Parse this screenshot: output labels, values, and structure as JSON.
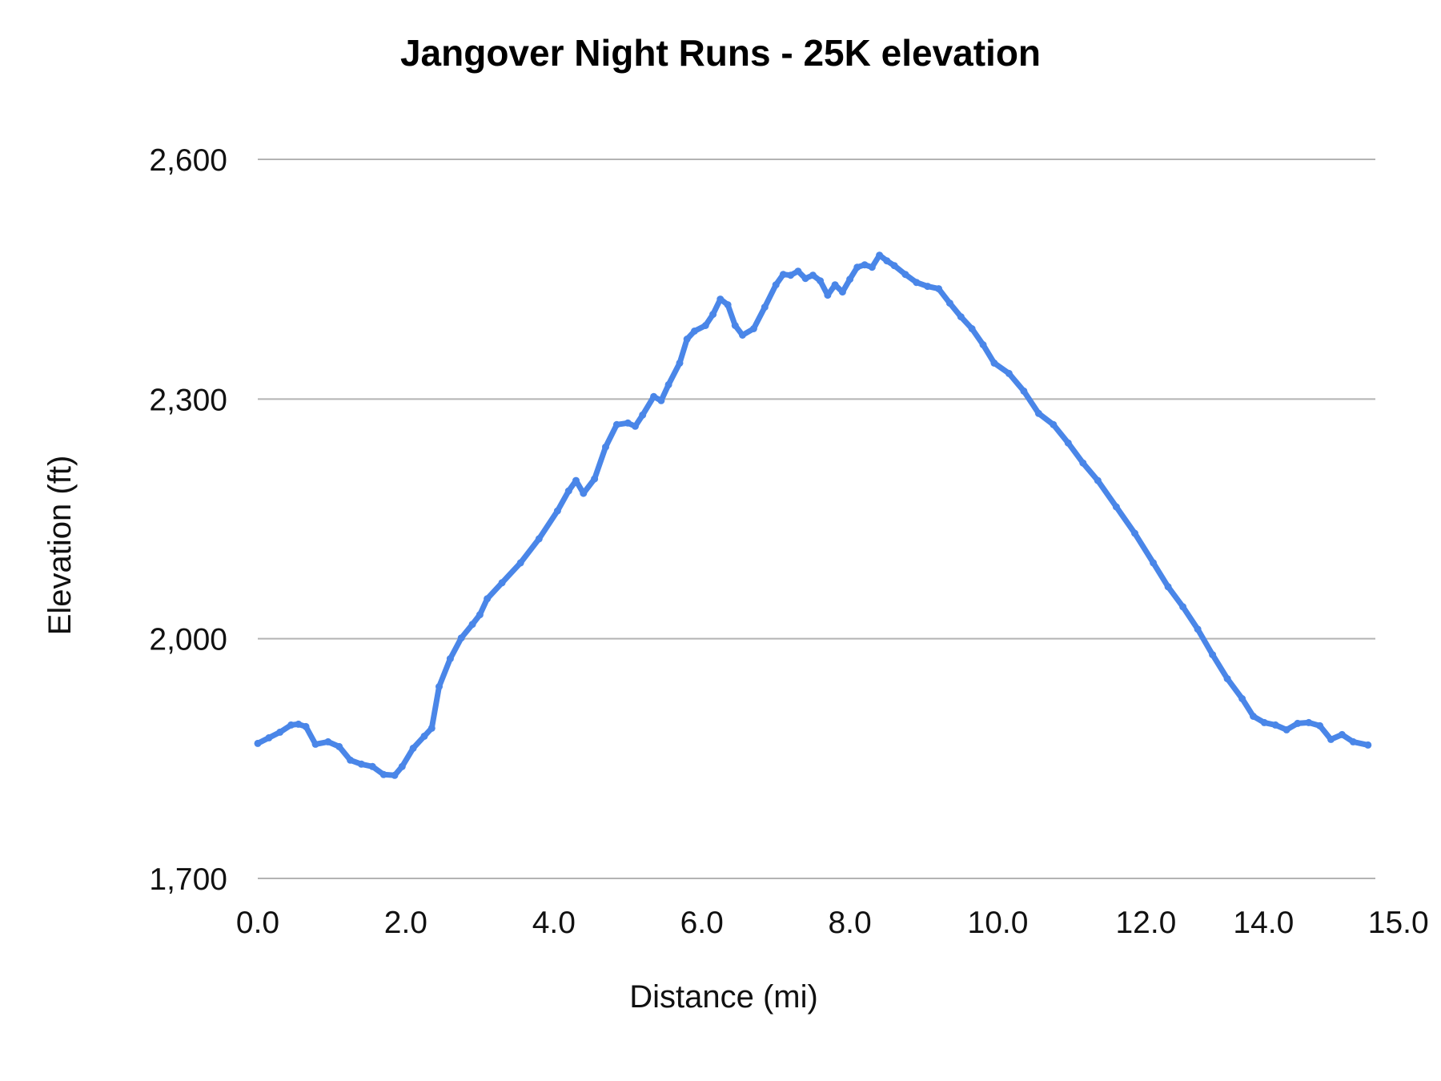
{
  "chart_data": {
    "type": "line",
    "title": "Jangover Night Runs - 25K elevation",
    "xlabel": "Distance (mi)",
    "ylabel": "Elevation (ft)",
    "xlim": [
      0,
      15.1
    ],
    "ylim": [
      1700,
      2600
    ],
    "x_ticks": [
      {
        "value": 0,
        "label": "0.0"
      },
      {
        "value": 2,
        "label": "2.0"
      },
      {
        "value": 4,
        "label": "4.0"
      },
      {
        "value": 6,
        "label": "6.0"
      },
      {
        "value": 8,
        "label": "8.0"
      },
      {
        "value": 10,
        "label": "10.0"
      },
      {
        "value": 12,
        "label": "12.0"
      },
      {
        "value": 14,
        "label": "14.0"
      },
      {
        "value": 15,
        "label": "15.0"
      }
    ],
    "y_ticks": [
      {
        "value": 1700,
        "label": "1,700"
      },
      {
        "value": 2000,
        "label": "2,000"
      },
      {
        "value": 2300,
        "label": "2,300"
      },
      {
        "value": 2600,
        "label": "2,600"
      }
    ],
    "grid": true,
    "legend": "none",
    "series": [
      {
        "color": "#4a86e8",
        "points": [
          [
            0.0,
            1869
          ],
          [
            0.15,
            1876
          ],
          [
            0.3,
            1883
          ],
          [
            0.45,
            1892
          ],
          [
            0.55,
            1893
          ],
          [
            0.65,
            1890
          ],
          [
            0.78,
            1868
          ],
          [
            0.95,
            1871
          ],
          [
            1.1,
            1865
          ],
          [
            1.25,
            1848
          ],
          [
            1.4,
            1843
          ],
          [
            1.55,
            1840
          ],
          [
            1.7,
            1830
          ],
          [
            1.85,
            1829
          ],
          [
            1.95,
            1840
          ],
          [
            2.1,
            1863
          ],
          [
            2.25,
            1878
          ],
          [
            2.35,
            1888
          ],
          [
            2.45,
            1940
          ],
          [
            2.6,
            1975
          ],
          [
            2.75,
            2001
          ],
          [
            2.9,
            2018
          ],
          [
            3.0,
            2030
          ],
          [
            3.1,
            2050
          ],
          [
            3.3,
            2070
          ],
          [
            3.55,
            2095
          ],
          [
            3.8,
            2125
          ],
          [
            4.05,
            2160
          ],
          [
            4.2,
            2185
          ],
          [
            4.3,
            2198
          ],
          [
            4.4,
            2182
          ],
          [
            4.55,
            2200
          ],
          [
            4.7,
            2240
          ],
          [
            4.85,
            2268
          ],
          [
            5.0,
            2270
          ],
          [
            5.1,
            2266
          ],
          [
            5.2,
            2280
          ],
          [
            5.35,
            2303
          ],
          [
            5.45,
            2298
          ],
          [
            5.55,
            2318
          ],
          [
            5.7,
            2345
          ],
          [
            5.8,
            2375
          ],
          [
            5.9,
            2385
          ],
          [
            6.05,
            2392
          ],
          [
            6.15,
            2406
          ],
          [
            6.25,
            2425
          ],
          [
            6.35,
            2418
          ],
          [
            6.45,
            2392
          ],
          [
            6.55,
            2380
          ],
          [
            6.7,
            2388
          ],
          [
            6.85,
            2415
          ],
          [
            7.0,
            2443
          ],
          [
            7.1,
            2456
          ],
          [
            7.2,
            2455
          ],
          [
            7.3,
            2460
          ],
          [
            7.4,
            2451
          ],
          [
            7.5,
            2455
          ],
          [
            7.6,
            2448
          ],
          [
            7.7,
            2430
          ],
          [
            7.8,
            2443
          ],
          [
            7.9,
            2434
          ],
          [
            8.0,
            2450
          ],
          [
            8.1,
            2465
          ],
          [
            8.2,
            2468
          ],
          [
            8.3,
            2465
          ],
          [
            8.4,
            2480
          ],
          [
            8.5,
            2473
          ],
          [
            8.6,
            2467
          ],
          [
            8.75,
            2456
          ],
          [
            8.9,
            2446
          ],
          [
            9.05,
            2441
          ],
          [
            9.2,
            2438
          ],
          [
            9.35,
            2420
          ],
          [
            9.5,
            2403
          ],
          [
            9.65,
            2388
          ],
          [
            9.8,
            2368
          ],
          [
            9.95,
            2345
          ],
          [
            10.15,
            2332
          ],
          [
            10.35,
            2310
          ],
          [
            10.55,
            2282
          ],
          [
            10.75,
            2268
          ],
          [
            10.95,
            2245
          ],
          [
            11.15,
            2220
          ],
          [
            11.35,
            2198
          ],
          [
            11.6,
            2165
          ],
          [
            11.85,
            2132
          ],
          [
            12.1,
            2095
          ],
          [
            12.3,
            2065
          ],
          [
            12.5,
            2040
          ],
          [
            12.7,
            2012
          ],
          [
            12.9,
            1980
          ],
          [
            13.1,
            1950
          ],
          [
            13.3,
            1925
          ],
          [
            13.45,
            1903
          ],
          [
            13.6,
            1895
          ],
          [
            13.75,
            1892
          ],
          [
            13.9,
            1886
          ],
          [
            14.05,
            1894
          ],
          [
            14.2,
            1895
          ],
          [
            14.35,
            1891
          ],
          [
            14.5,
            1874
          ],
          [
            14.65,
            1880
          ],
          [
            14.8,
            1871
          ],
          [
            15.0,
            1867
          ]
        ]
      }
    ]
  }
}
